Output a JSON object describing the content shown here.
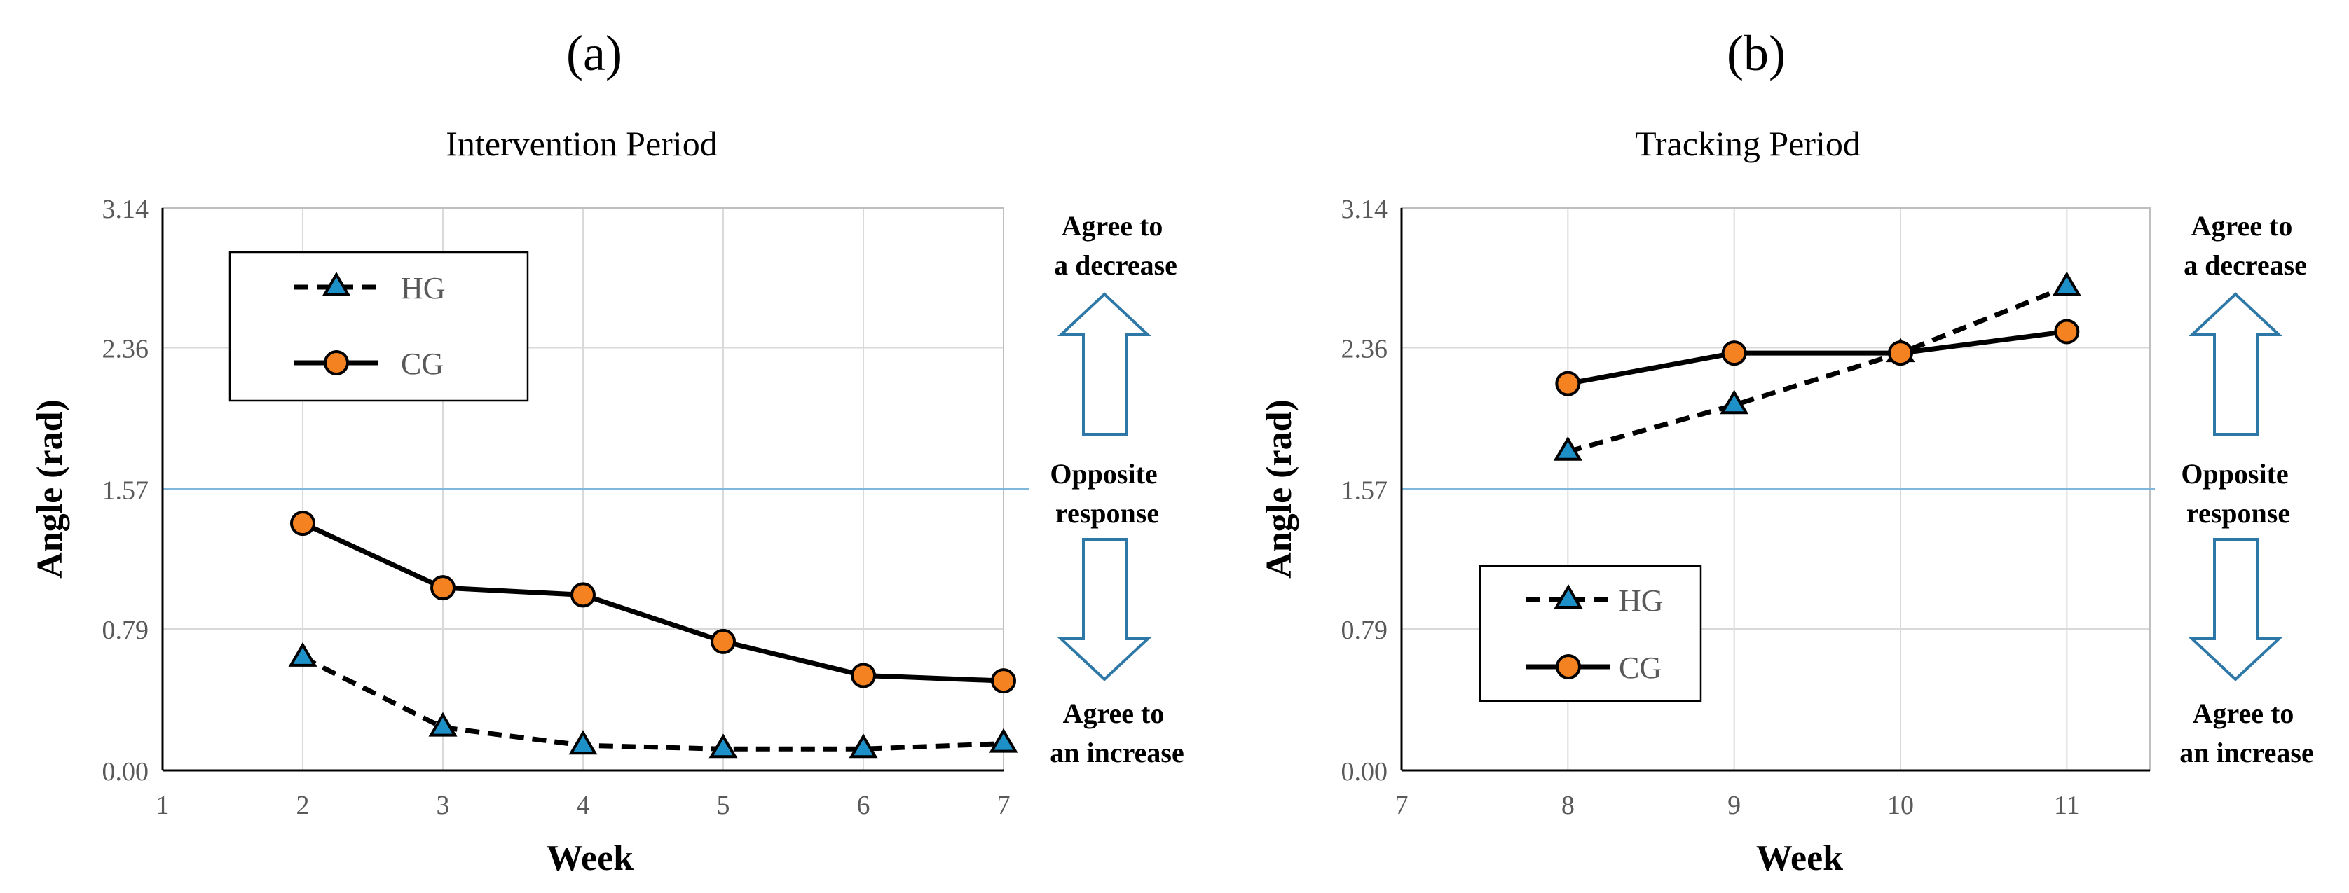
{
  "figure": {
    "colors": {
      "hg_fill": "#1E90C8",
      "cg_fill": "#F58220",
      "line": "#000000",
      "reference": "#7FB8DC",
      "arrow": "#2E78A8",
      "grid": "#D9D9D9",
      "text": "#000000",
      "tick_text": "#595959"
    },
    "annotations": {
      "decrease": [
        "Agree to",
        "a decrease"
      ],
      "opposite": [
        "Opposite",
        "response"
      ],
      "increase": [
        "Agree to",
        "an increase"
      ]
    }
  },
  "chart_data": [
    {
      "type": "line",
      "panel_label": "(a)",
      "title": "Intervention Period",
      "xlabel": "Week",
      "ylabel": "Angle (rad)",
      "xlim": [
        1,
        7
      ],
      "ylim": [
        0,
        3.14
      ],
      "x_ticks": [
        "1",
        "2",
        "3",
        "4",
        "5",
        "6",
        "7"
      ],
      "y_ticks": [
        "0.00",
        "0.79",
        "1.57",
        "2.36",
        "3.14"
      ],
      "y_tick_values": [
        0,
        0.79,
        1.57,
        2.36,
        3.14
      ],
      "reference_line": 1.57,
      "grid": true,
      "legend_position": "top-left",
      "series": [
        {
          "name": "HG",
          "style": "dashed",
          "marker": "triangle",
          "x": [
            2,
            3,
            4,
            5,
            6,
            7
          ],
          "values": [
            0.63,
            0.24,
            0.14,
            0.12,
            0.12,
            0.15
          ]
        },
        {
          "name": "CG",
          "style": "solid",
          "marker": "circle",
          "x": [
            2,
            3,
            4,
            5,
            6,
            7
          ],
          "values": [
            1.38,
            1.02,
            0.98,
            0.72,
            0.53,
            0.5
          ]
        }
      ]
    },
    {
      "type": "line",
      "panel_label": "(b)",
      "title": "Tracking Period",
      "xlabel": "Week",
      "ylabel": "Angle (rad)",
      "xlim": [
        7,
        11.5
      ],
      "ylim": [
        0,
        3.14
      ],
      "x_ticks": [
        "7",
        "8",
        "9",
        "10",
        "11"
      ],
      "y_ticks": [
        "0.00",
        "0.79",
        "1.57",
        "2.36",
        "3.14"
      ],
      "y_tick_values": [
        0,
        0.79,
        1.57,
        2.36,
        3.14
      ],
      "reference_line": 1.57,
      "grid": true,
      "legend_position": "bottom-left",
      "series": [
        {
          "name": "HG",
          "style": "dashed",
          "marker": "triangle",
          "x": [
            8,
            9,
            10,
            11
          ],
          "values": [
            1.78,
            2.04,
            2.33,
            2.7
          ]
        },
        {
          "name": "CG",
          "style": "solid",
          "marker": "circle",
          "x": [
            8,
            9,
            10,
            11
          ],
          "values": [
            2.16,
            2.33,
            2.33,
            2.45
          ]
        }
      ]
    }
  ]
}
